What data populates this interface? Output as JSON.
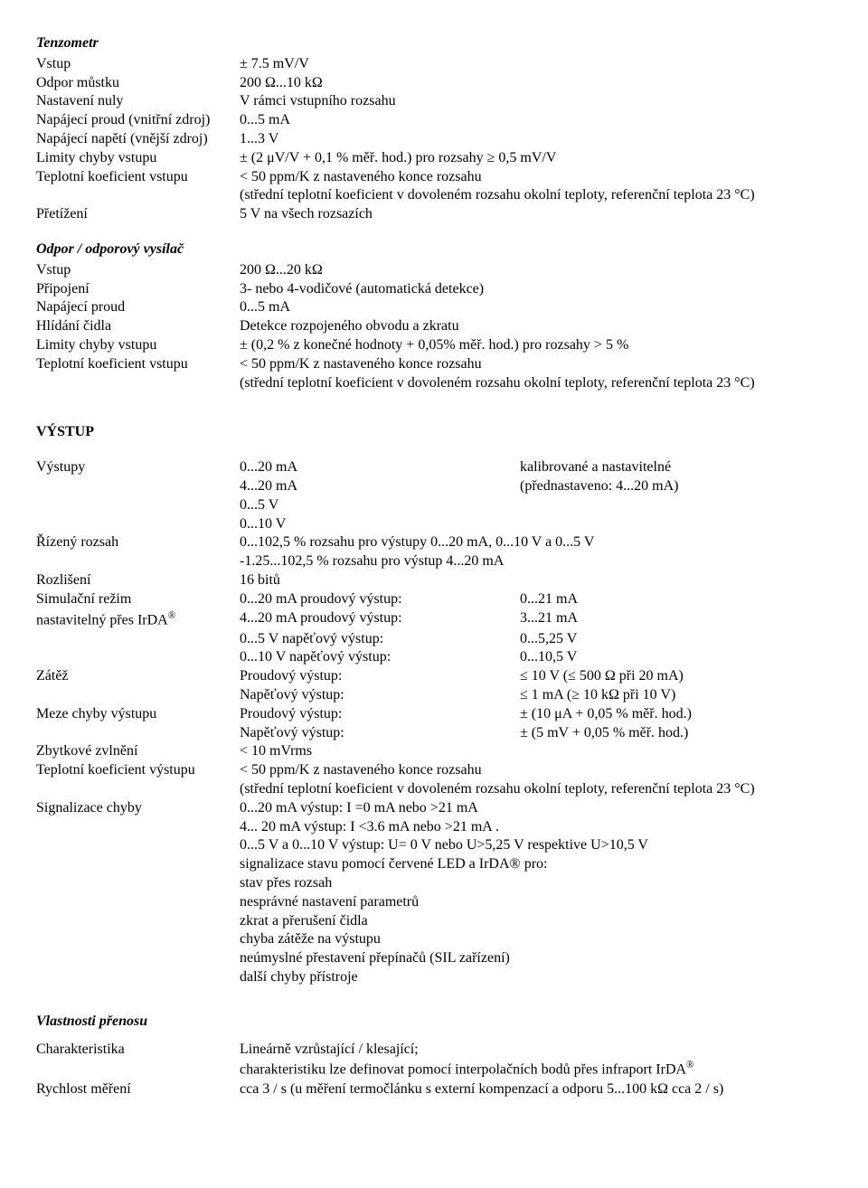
{
  "tenzometr": {
    "title": "Tenzometr",
    "rows": [
      {
        "label": "Vstup",
        "value": "± 7.5 mV/V"
      },
      {
        "label": "Odpor můstku",
        "value": "200 Ω...10 kΩ"
      },
      {
        "label": "Nastavení nuly",
        "value": "V rámci vstupního rozsahu"
      },
      {
        "label": "Napájecí proud (vnitřní zdroj)",
        "value": "0...5 mA"
      },
      {
        "label": "Napájecí napětí (vnější zdroj)",
        "value": "1...3 V"
      },
      {
        "label": "Limity chyby vstupu",
        "value": "± (2 μV/V + 0,1 % měř. hod.) pro rozsahy ≥ 0,5 mV/V"
      },
      {
        "label": "Teplotní koeficient vstupu",
        "value": "< 50 ppm/K z nastaveného konce rozsahu"
      },
      {
        "label": "",
        "value": "(střední teplotní koeficient v dovoleném rozsahu okolní teploty, referenční teplota 23 °C)"
      },
      {
        "label": "Přetížení",
        "value": "5 V na všech rozsazích"
      }
    ]
  },
  "odpor": {
    "title": "Odpor / odporový vysílač",
    "rows": [
      {
        "label": "Vstup",
        "value": "200 Ω...20 kΩ"
      },
      {
        "label": "Připojení",
        "value": "3- nebo 4-vodičové (automatická detekce)"
      },
      {
        "label": "Napájecí proud",
        "value": "0...5 mA"
      },
      {
        "label": "Hlídání čidla",
        "value": "Detekce rozpojeného obvodu a zkratu"
      },
      {
        "label": "Limity chyby vstupu",
        "value": "± (0,2 % z konečné hodnoty + 0,05% měř. hod.) pro rozsahy > 5 %"
      },
      {
        "label": "Teplotní koeficient vstupu",
        "value": "< 50 ppm/K z nastaveného konce rozsahu"
      },
      {
        "label": "",
        "value": "(střední teplotní koeficient v dovoleném rozsahu okolní teploty, referenční teplota 23 °C)"
      }
    ]
  },
  "vystup": {
    "heading": "VÝSTUP",
    "vystupy": {
      "label": "Výstupy",
      "lines": [
        {
          "a": "0...20 mA",
          "b": "kalibrované a nastavitelné"
        },
        {
          "a": "4...20 mA",
          "b": "(přednastaveno: 4...20 mA)"
        },
        {
          "a": "0...5 V",
          "b": ""
        },
        {
          "a": "0...10 V",
          "b": ""
        }
      ]
    },
    "rizeny": {
      "label": "Řízený rozsah",
      "lines": [
        "0...102,5 % rozsahu pro výstupy 0...20 mA, 0...10 V a 0...5 V",
        "-1.25...102,5 % rozsahu pro výstup 4...20 mA"
      ]
    },
    "rozliseni": {
      "label": "Rozlišení",
      "value": "16 bitů"
    },
    "simulacni": {
      "label1": "Simulační režim",
      "label2_pre": "nastavitelný přes IrDA",
      "label2_sup": "®",
      "lines": [
        {
          "a": "0...20 mA proudový výstup:",
          "b": "0...21 mA"
        },
        {
          "a": "4...20 mA proudový výstup:",
          "b": "3...21 mA"
        },
        {
          "a": "0...5 V napěťový výstup:",
          "b": "0...5,25 V"
        },
        {
          "a": "0...10 V napěťový výstup:",
          "b": "0...10,5 V"
        }
      ]
    },
    "zatez": {
      "label": "Zátěž",
      "lines": [
        {
          "a": "Proudový výstup:",
          "b": "≤ 10 V (≤ 500 Ω při 20 mA)"
        },
        {
          "a": "Napěťový výstup:",
          "b": "≤ 1 mA (≥ 10 kΩ při 10 V)"
        }
      ]
    },
    "meze": {
      "label": "Meze chyby výstupu",
      "lines": [
        {
          "a": "Proudový výstup:",
          "b": "± (10 μA + 0,05 % měř. hod.)"
        },
        {
          "a": "Napěťový výstup:",
          "b": "± (5 mV + 0,05 % měř. hod.)"
        }
      ]
    },
    "zbytkove": {
      "label": "Zbytkové zvlnění",
      "value": "< 10 mVrms"
    },
    "teplotni": {
      "label": "Teplotní koeficient výstupu",
      "lines": [
        "< 50 ppm/K z nastaveného konce rozsahu",
        "(střední teplotní koeficient v dovoleném rozsahu okolní teploty, referenční teplota 23 °C)"
      ]
    },
    "signalizace": {
      "label": "Signalizace chyby",
      "lines": [
        "0...20 mA výstup: I =0 mA nebo >21 mA",
        "4... 20 mA výstup: I <3.6 mA nebo >21 mA .",
        "0...5 V a 0...10 V výstup: U= 0 V nebo U>5,25 V respektive U>10,5 V",
        "signalizace stavu pomocí červené LED a IrDA® pro:",
        "stav přes rozsah",
        "nesprávné nastavení parametrů",
        "zkrat a přerušení čidla",
        "chyba zátěže na výstupu",
        "neúmyslné přestavení přepínačů (SIL zařízení)",
        "další chyby přístroje"
      ]
    }
  },
  "prenos": {
    "title": "Vlastnosti přenosu",
    "charakteristika": {
      "label": "Charakteristika",
      "line1": "Lineárně vzrůstající / klesající;",
      "line2_pre": "charakteristiku lze definovat pomocí interpolačních bodů přes infraport IrDA",
      "line2_sup": "®"
    },
    "rychlost": {
      "label": "Rychlost měření",
      "value": "cca 3 / s (u měření termočlánku s externí kompenzací a odporu 5...100 kΩ cca 2 / s)"
    }
  }
}
